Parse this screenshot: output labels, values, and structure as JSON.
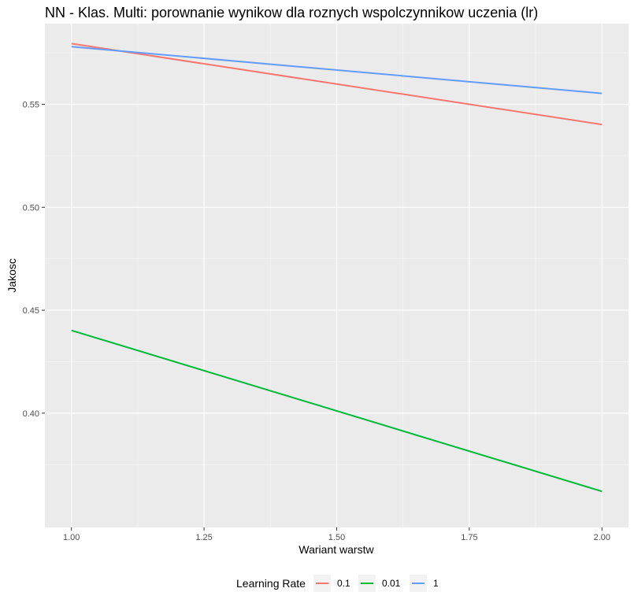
{
  "chart_data": {
    "type": "line",
    "title": "NN - Klas. Multi: porownanie wynikow dla roznych wspolczynnikow uczenia (lr)",
    "xlabel": "Wariant warstw",
    "ylabel": "Jakosc",
    "xlim": [
      0.95,
      2.05
    ],
    "ylim": [
      0.3445,
      0.5892
    ],
    "x_ticks": [
      1.0,
      1.25,
      1.5,
      1.75,
      2.0
    ],
    "x_tick_labels": [
      "1.00",
      "1.25",
      "1.50",
      "1.75",
      "2.00"
    ],
    "y_ticks": [
      0.4,
      0.45,
      0.5,
      0.55
    ],
    "y_tick_labels": [
      "0.40",
      "0.45",
      "0.50",
      "0.55"
    ],
    "grid": true,
    "legend": {
      "title": "Learning Rate",
      "placement": "bottom"
    },
    "series": [
      {
        "name": "0.1",
        "color": "#F8766D",
        "x": [
          1,
          2
        ],
        "y": [
          0.5795,
          0.5402
        ]
      },
      {
        "name": "0.01",
        "color": "#00BA38",
        "x": [
          1,
          2
        ],
        "y": [
          0.4402,
          0.362
        ]
      },
      {
        "name": "1",
        "color": "#619CFF",
        "x": [
          1,
          2
        ],
        "y": [
          0.578,
          0.5553
        ]
      }
    ]
  },
  "colors": {
    "panel_background": "#EBEBEB",
    "grid_major": "#FFFFFF",
    "grid_minor": "#F5F5F5"
  }
}
